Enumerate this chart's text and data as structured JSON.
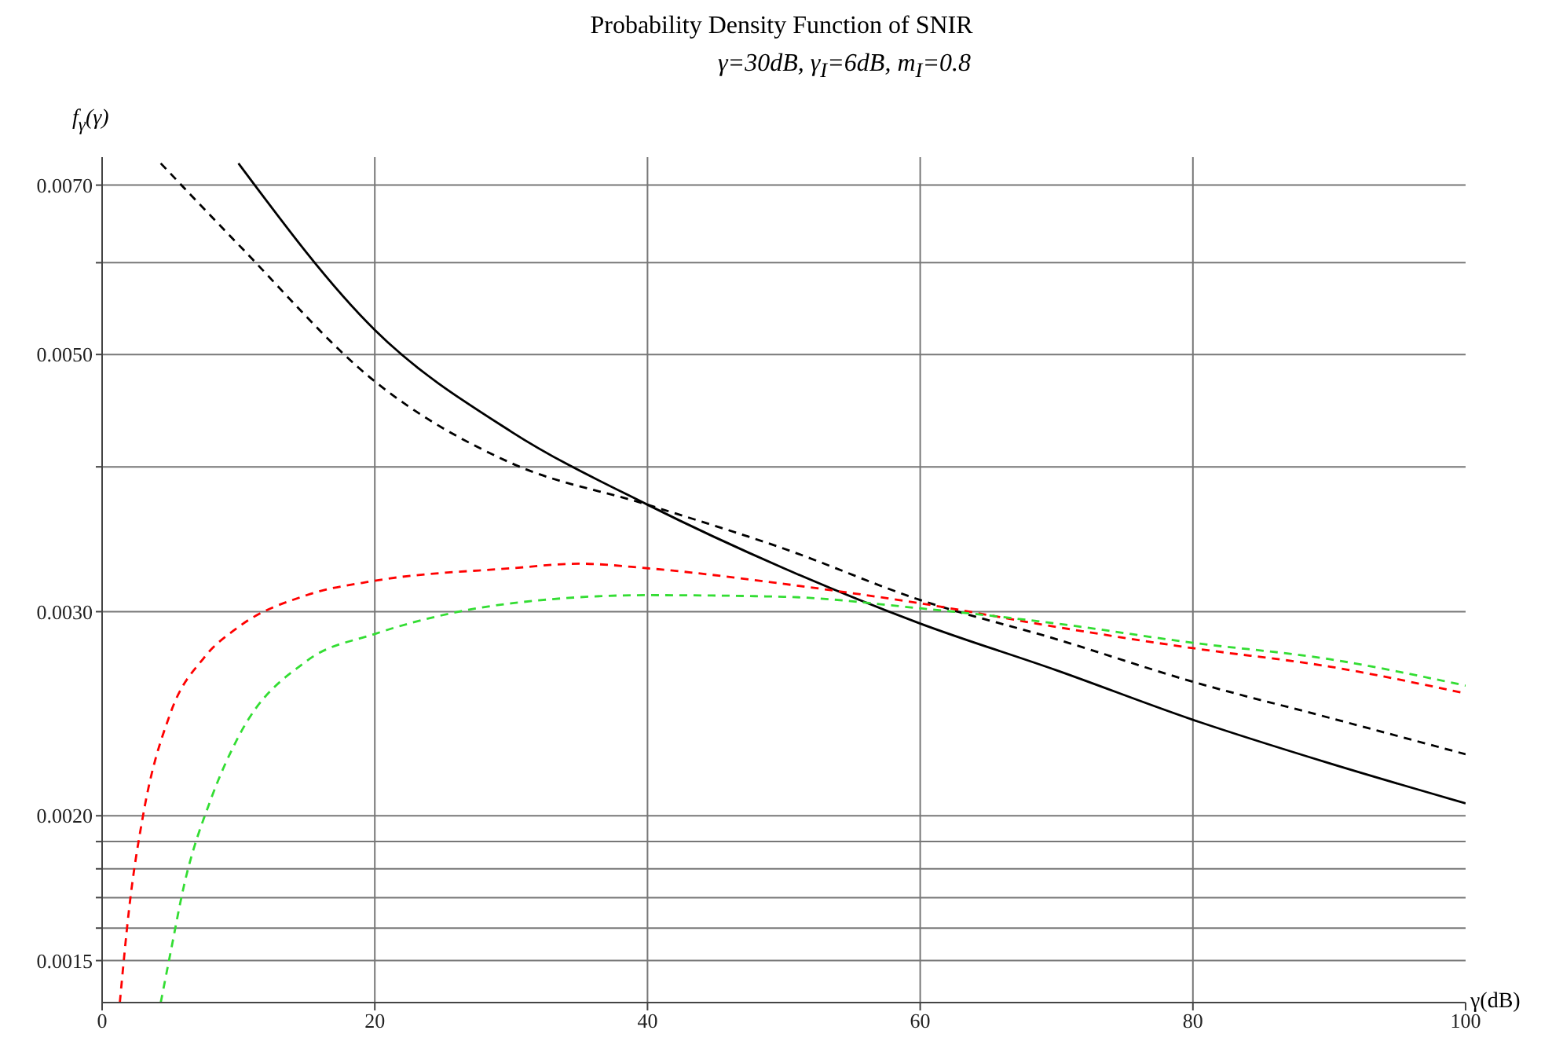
{
  "chart_data": {
    "type": "line",
    "title": "Probability Density Function of SNIR",
    "subtitle": "γ=30dB, γ$_{I}$=6dB, m$_{I}$=0.8",
    "xlabel": "γ(dB)",
    "ylabel": "f$_{γ}$(γ)",
    "log": "y",
    "grid": true,
    "marker": "none",
    "xlim": [
      0,
      100
    ],
    "xticks": [
      0,
      20,
      40,
      60,
      80,
      100
    ],
    "ylim": [
      0.00138,
      0.0074
    ],
    "yticks": [
      {
        "value": 0.0015,
        "label": "0.0015"
      },
      {
        "value": 0.0016,
        "label": null
      },
      {
        "value": 0.0017,
        "label": null
      },
      {
        "value": 0.0018,
        "label": null
      },
      {
        "value": 0.0019,
        "label": null
      },
      {
        "value": 0.002,
        "label": "0.0020"
      },
      {
        "value": 0.003,
        "label": "0.0030"
      },
      {
        "value": 0.004,
        "label": null
      },
      {
        "value": 0.005,
        "label": "0.0050"
      },
      {
        "value": 0.006,
        "label": null
      },
      {
        "value": 0.007,
        "label": "0.0070"
      }
    ],
    "series": [
      {
        "color": "#000000",
        "line_style": "solid",
        "x": [
          10,
          20,
          30,
          40,
          50,
          60,
          70,
          80,
          90,
          100
        ],
        "values": [
          0.00731,
          0.00525,
          0.00429,
          0.00371,
          0.00327,
          0.00293,
          0.00267,
          0.00242,
          0.00222,
          0.00205
        ]
      },
      {
        "color": "#000000",
        "line_style": "dashed",
        "x": [
          4.3,
          10,
          20,
          30,
          40,
          50,
          60,
          70,
          80,
          90,
          100
        ],
        "values": [
          0.00731,
          0.00622,
          0.00474,
          0.00403,
          0.00371,
          0.0034,
          0.00307,
          0.00284,
          0.00261,
          0.00243,
          0.00226
        ]
      },
      {
        "color": "#ff0000",
        "line_style": "dashed",
        "x": [
          1.3,
          2,
          3,
          5,
          7.5,
          10,
          15,
          20,
          30,
          35,
          40,
          50,
          60,
          70,
          80,
          90,
          100
        ],
        "values": [
          0.00138,
          0.00167,
          0.002,
          0.00245,
          0.00274,
          0.00291,
          0.0031,
          0.00319,
          0.00327,
          0.0033,
          0.00327,
          0.00317,
          0.00305,
          0.00291,
          0.00279,
          0.00269,
          0.00255
        ]
      },
      {
        "color": "#33dd33",
        "line_style": "dashed",
        "x": [
          4.3,
          5,
          6,
          8,
          10,
          15,
          20,
          25,
          30,
          40,
          50,
          60,
          70,
          80,
          90,
          100
        ],
        "values": [
          0.00138,
          0.00152,
          0.00174,
          0.00207,
          0.00234,
          0.00272,
          0.00287,
          0.00298,
          0.00305,
          0.0031,
          0.00309,
          0.00302,
          0.00293,
          0.00282,
          0.00273,
          0.00259
        ]
      }
    ]
  }
}
